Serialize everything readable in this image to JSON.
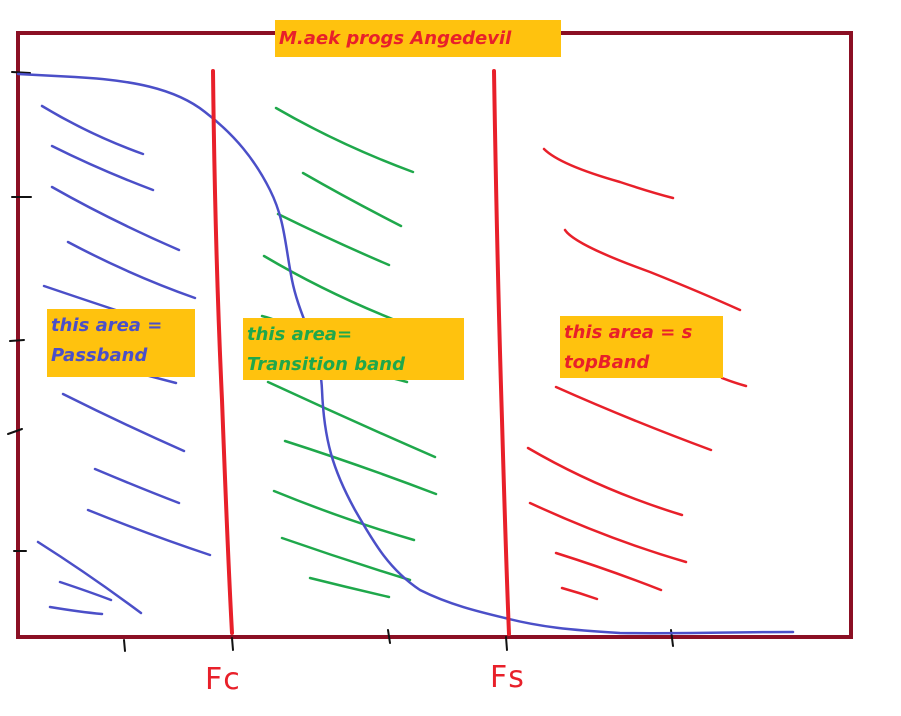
{
  "title": "M.aek progs Angedevil",
  "regions": {
    "passband": {
      "line1": "this area =",
      "line2": "Passband",
      "color": "#4b4fc8"
    },
    "transition": {
      "line1": "this area=",
      "line2": "Transition band",
      "color": "#1fa84b"
    },
    "stopband": {
      "line1": "this area = s",
      "line2": "topBand",
      "color": "#e8202a"
    }
  },
  "markers": {
    "fc": "Fc",
    "fs": "Fs"
  },
  "colors": {
    "frame": "#8b0f24",
    "curve": "#4b4fc8",
    "cutoff_lines": "#e8202a",
    "label_background": "#ffc20e"
  }
}
